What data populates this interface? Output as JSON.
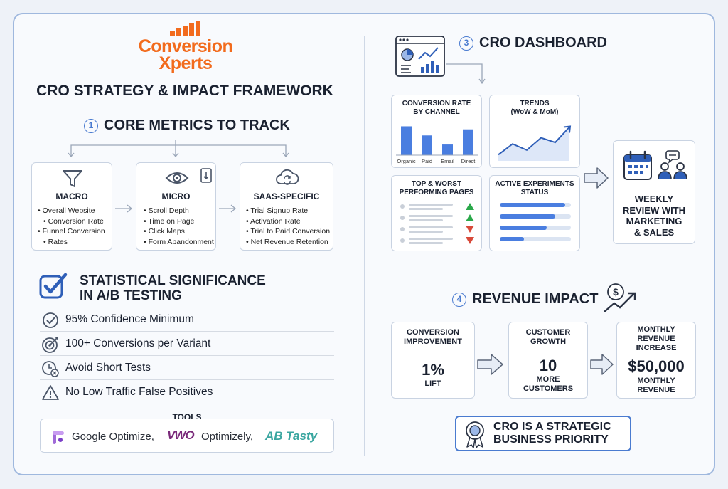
{
  "brand": {
    "line1": "Conversion",
    "line2": "Xperts",
    "color": "#f26b1d"
  },
  "title": "CRO STRATEGY & IMPACT FRAMEWORK",
  "section1": {
    "number": "1",
    "title": "CORE METRICS TO TRACK",
    "cards": [
      {
        "icon": "funnel-icon",
        "title": "MACRO",
        "items": [
          "Overall Website",
          "Conversion Rate",
          "Funnel Conversion",
          "Rates"
        ]
      },
      {
        "icon": "eye-icon",
        "title": "MICRO",
        "items": [
          "Scroll Depth",
          "Time on Page",
          "Click Maps",
          "Form Abandonment"
        ]
      },
      {
        "icon": "cloud-sync-icon",
        "title": "SAAS-SPECIFIC",
        "items": [
          "Trial Signup Rate",
          "Activation Rate",
          "Trial to Paid Conversion",
          "Net Revenue Retention"
        ]
      }
    ]
  },
  "significance": {
    "title_line1": "STATISTICAL SIGNIFICANCE",
    "title_line2": "IN A/B TESTING",
    "rows": [
      {
        "icon": "check-circle-icon",
        "text": "95% Confidence Minimum"
      },
      {
        "icon": "target-icon",
        "text": "100+ Conversions per Variant"
      },
      {
        "icon": "clock-x-icon",
        "text": "Avoid Short Tests"
      },
      {
        "icon": "warning-icon",
        "text": "No Low Traffic False Positives"
      }
    ]
  },
  "tools": {
    "label": "TOOLS",
    "google": "Google Optimize,",
    "vwo": "VWO",
    "optimizely": "Optimizely,",
    "abtasty": "AB Tasty"
  },
  "section3": {
    "number": "3",
    "title": "CRO DASHBOARD",
    "channel_card": {
      "title_line1": "CONVERSION RATE",
      "title_line2": "BY CHANNEL"
    },
    "trends_card": {
      "title_line1": "TRENDS",
      "title_line2": "(WoW & MoM)"
    },
    "pages_card": {
      "title_line1": "TOP & WORST",
      "title_line2": "PERFORMING PAGES"
    },
    "experiments_card": {
      "title_line1": "ACTIVE EXPERIMENTS",
      "title_line2": "STATUS"
    },
    "weekly": {
      "line1": "WEEKLY",
      "line2": "REVIEW WITH",
      "line3": "MARKETING",
      "line4": "& SALES"
    }
  },
  "chart_data": [
    {
      "type": "bar",
      "categories": [
        "Organic",
        "Paid",
        "Email",
        "Direct"
      ],
      "values": [
        38,
        26,
        14,
        34
      ],
      "ylim": [
        0,
        45
      ]
    },
    {
      "type": "line",
      "x": [
        1,
        2,
        3,
        4,
        5,
        6
      ],
      "values": [
        8,
        22,
        14,
        30,
        24,
        44
      ],
      "ylim": [
        0,
        50
      ]
    },
    {
      "type": "bar",
      "orientation": "horizontal",
      "values": [
        0.92,
        0.78,
        0.66,
        0.34
      ]
    }
  ],
  "pages": [
    {
      "trend": "up",
      "color": "#2aa84a"
    },
    {
      "trend": "up",
      "color": "#2aa84a"
    },
    {
      "trend": "down",
      "color": "#d84a3a"
    },
    {
      "trend": "down",
      "color": "#d84a3a"
    }
  ],
  "section4": {
    "number": "4",
    "title": "REVENUE IMPACT",
    "cards": [
      {
        "title_line1": "CONVERSION",
        "title_line2": "IMPROVEMENT",
        "big": "1%",
        "sub_line1": "LIFT",
        "sub_line2": ""
      },
      {
        "title_line1": "CUSTOMER",
        "title_line2": "GROWTH",
        "big": "10",
        "sub_line1": "MORE",
        "sub_line2": "CUSTOMERS"
      },
      {
        "title_line1": "MONTHLY",
        "title_line2": "REVENUE",
        "title_line3": "INCREASE",
        "big": "$50,000",
        "sub_line1": "MONTHLY",
        "sub_line2": "REVENUE"
      }
    ],
    "badge_line1": "CRO IS A STRATEGIC",
    "badge_line2": "BUSINESS PRIORITY"
  },
  "colors": {
    "accent": "#4a7ee0",
    "border": "#9fb8de",
    "up": "#2aa84a",
    "down": "#d84a3a"
  }
}
